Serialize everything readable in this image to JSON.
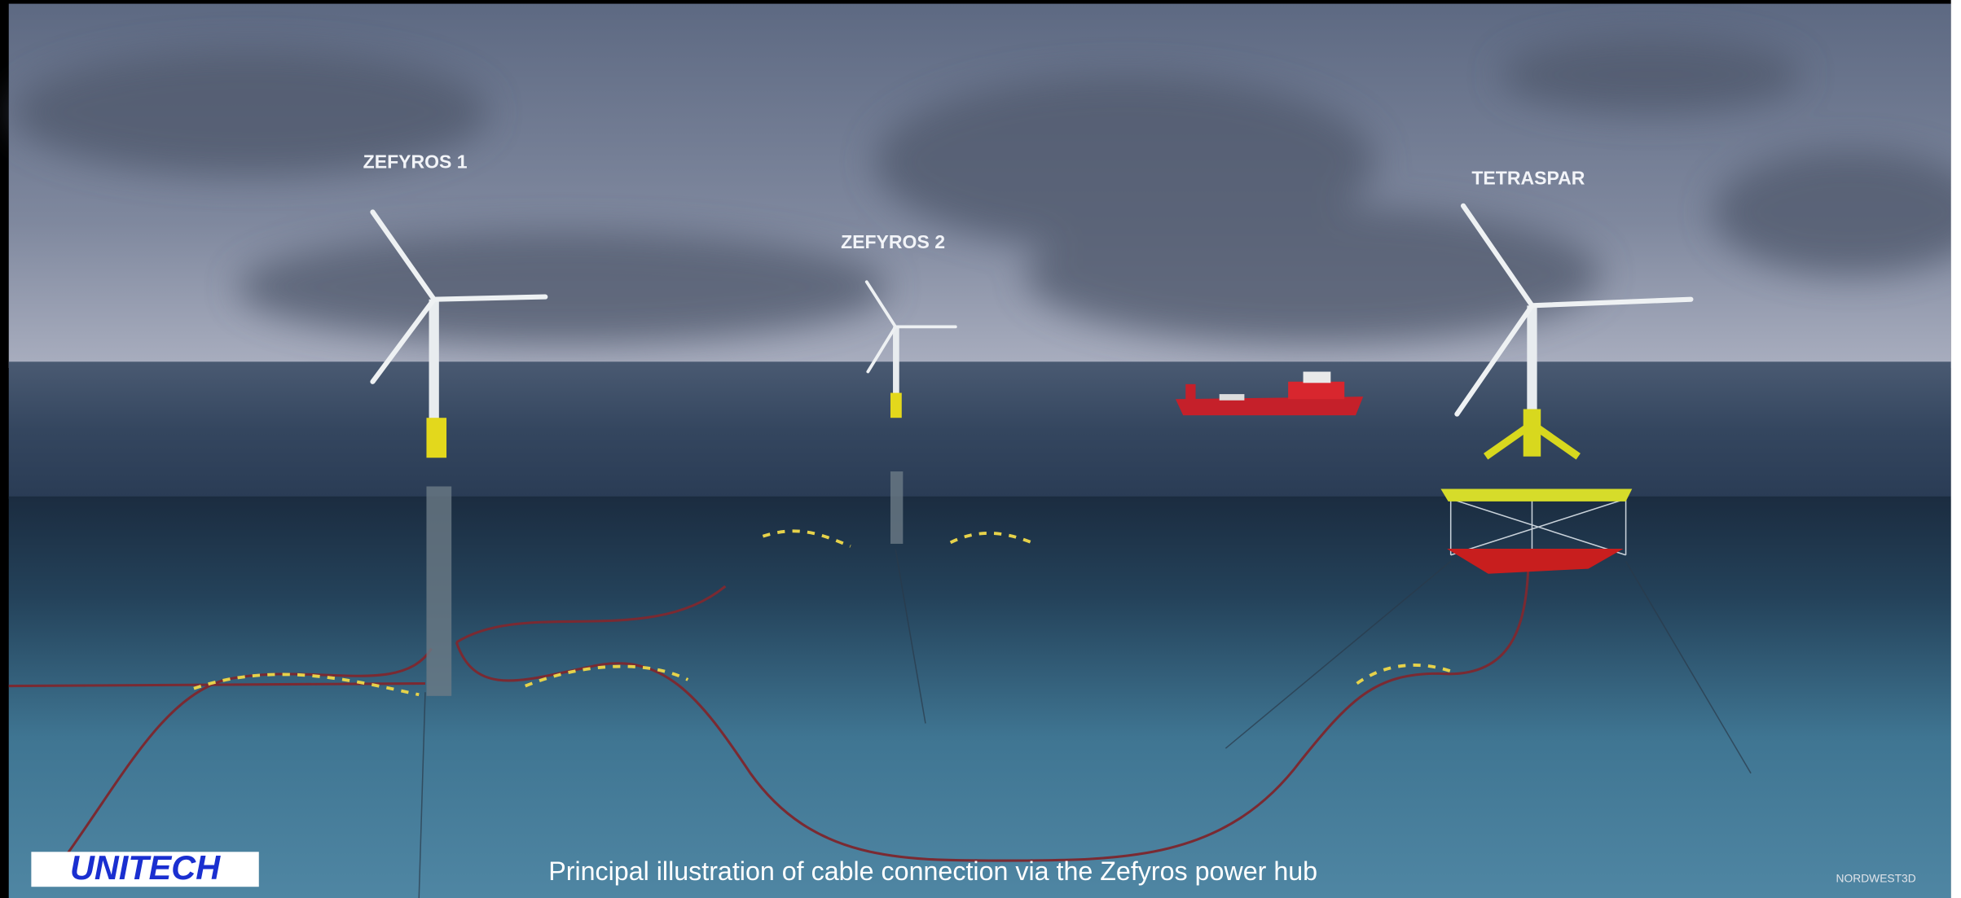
{
  "scene": {
    "turbines": [
      {
        "label": "ZEFYROS 1"
      },
      {
        "label": "ZEFYROS 2"
      },
      {
        "label": "TETRASPAR"
      }
    ]
  },
  "logo": "UNITECH",
  "caption": "Principal illustration of cable connection via the Zefyros power hub",
  "credit": "NORDWEST3D"
}
